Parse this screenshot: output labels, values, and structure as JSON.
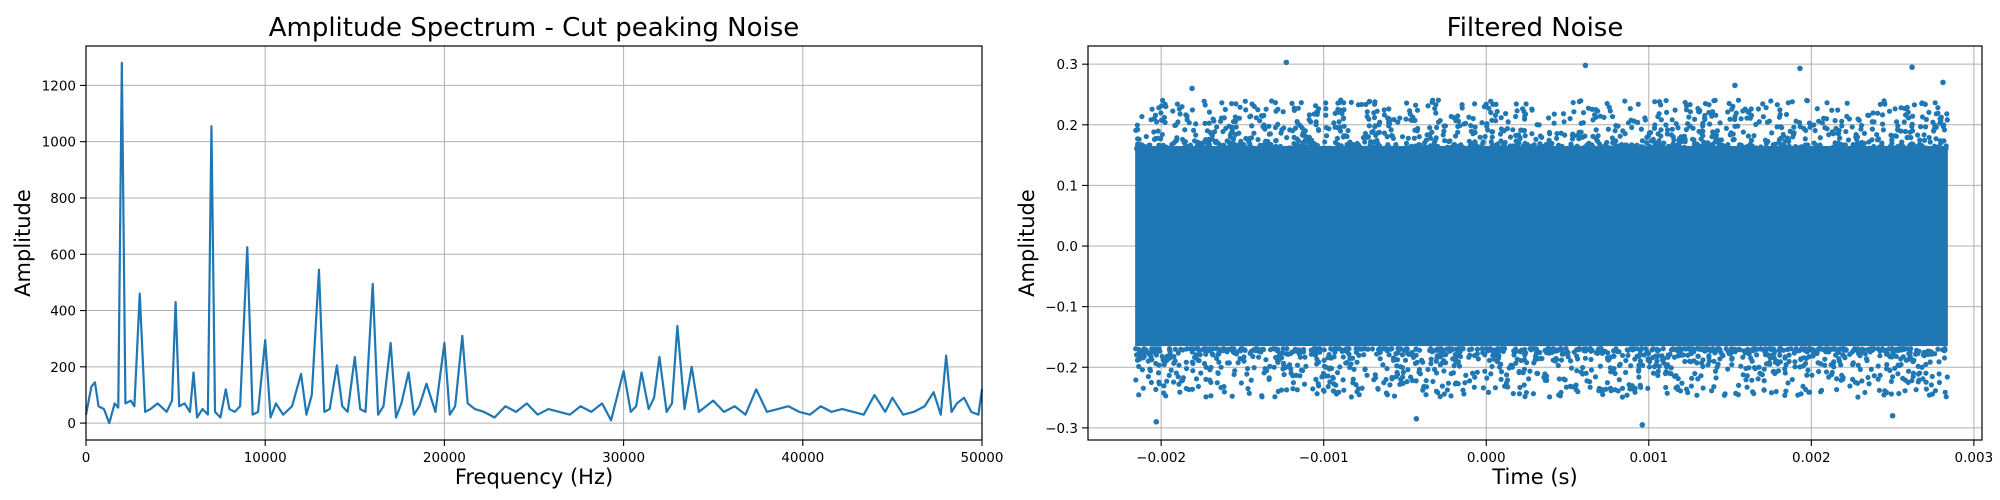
{
  "colors": {
    "series": "#1f77b4",
    "grid": "#b0b0b0",
    "axes": "#000000"
  },
  "chart_data": [
    {
      "type": "line",
      "title": "Amplitude Spectrum - Cut peaking Noise",
      "xlabel": "Frequency (Hz)",
      "ylabel": "Amplitude",
      "xlim": [
        0,
        50000
      ],
      "ylim": [
        -60,
        1340
      ],
      "xticks": [
        0,
        10000,
        20000,
        30000,
        40000,
        50000
      ],
      "xtick_labels": [
        "0",
        "10000",
        "20000",
        "30000",
        "40000",
        "50000"
      ],
      "yticks": [
        0,
        200,
        400,
        600,
        800,
        1000,
        1200
      ],
      "ytick_labels": [
        "0",
        "200",
        "400",
        "600",
        "800",
        "1000",
        "1200"
      ],
      "grid": true,
      "series": [
        {
          "x": [
            0,
            300,
            500,
            700,
            1000,
            1300,
            1600,
            1800,
            2000,
            2200,
            2500,
            2700,
            3000,
            3300,
            3600,
            4000,
            4500,
            4800,
            5000,
            5200,
            5500,
            5800,
            6000,
            6200,
            6500,
            6800,
            7000,
            7200,
            7500,
            7800,
            8000,
            8300,
            8600,
            9000,
            9300,
            9600,
            10000,
            10300,
            10600,
            11000,
            11500,
            12000,
            12300,
            12600,
            13000,
            13300,
            13600,
            14000,
            14300,
            14600,
            15000,
            15300,
            15600,
            16000,
            16300,
            16600,
            17000,
            17300,
            17600,
            18000,
            18300,
            18600,
            19000,
            19500,
            20000,
            20300,
            20600,
            21000,
            21300,
            21700,
            22200,
            22800,
            23400,
            24000,
            24600,
            25200,
            25800,
            26400,
            27000,
            27600,
            28200,
            28800,
            29300,
            30000,
            30400,
            30700,
            31000,
            31400,
            31700,
            32000,
            32400,
            32700,
            33000,
            33400,
            33800,
            34200,
            34600,
            35000,
            35600,
            36200,
            36800,
            37400,
            38000,
            38600,
            39200,
            39800,
            40400,
            41000,
            41600,
            42200,
            42800,
            43400,
            44000,
            44600,
            45000,
            45600,
            46200,
            46800,
            47300,
            47700,
            48000,
            48300,
            48600,
            49000,
            49400,
            49800,
            50000
          ],
          "y": [
            30,
            130,
            145,
            60,
            50,
            0,
            70,
            55,
            1280,
            70,
            80,
            60,
            460,
            40,
            50,
            70,
            40,
            80,
            430,
            60,
            70,
            40,
            180,
            20,
            50,
            30,
            1055,
            40,
            20,
            120,
            50,
            40,
            60,
            625,
            30,
            40,
            295,
            20,
            70,
            30,
            60,
            175,
            30,
            100,
            545,
            40,
            50,
            205,
            60,
            40,
            235,
            50,
            40,
            495,
            30,
            60,
            285,
            20,
            70,
            180,
            30,
            60,
            140,
            40,
            285,
            30,
            60,
            310,
            70,
            50,
            40,
            20,
            60,
            40,
            70,
            30,
            50,
            40,
            30,
            60,
            40,
            70,
            10,
            185,
            40,
            60,
            180,
            50,
            90,
            235,
            40,
            70,
            345,
            50,
            200,
            40,
            60,
            80,
            40,
            60,
            30,
            120,
            40,
            50,
            60,
            40,
            30,
            60,
            40,
            50,
            40,
            30,
            100,
            40,
            90,
            30,
            40,
            60,
            110,
            30,
            240,
            40,
            70,
            90,
            40,
            30,
            120
          ]
        }
      ]
    },
    {
      "type": "scatter",
      "title": "Filtered Noise",
      "xlabel": "Time (s)",
      "ylabel": "Amplitude",
      "xlim": [
        -0.00245,
        0.00305
      ],
      "ylim": [
        -0.32,
        0.33
      ],
      "xticks": [
        -0.002,
        -0.001,
        0.0,
        0.001,
        0.002,
        0.003
      ],
      "xtick_labels": [
        "−0.002",
        "−0.001",
        "0.000",
        "0.001",
        "0.002",
        "0.003"
      ],
      "yticks": [
        -0.3,
        -0.2,
        -0.1,
        0.0,
        0.1,
        0.2,
        0.3
      ],
      "ytick_labels": [
        "−0.3",
        "−0.2",
        "−0.1",
        "0.0",
        "0.1",
        "0.2",
        "0.3"
      ],
      "grid": true,
      "series": [
        {
          "x_range": [
            -0.00216,
            0.00284
          ],
          "dense_band": [
            -0.165,
            0.165
          ],
          "spread_extent": [
            -0.29,
            0.305
          ],
          "outliers": [
            {
              "x": -0.00203,
              "y": -0.29
            },
            {
              "x": -0.00123,
              "y": 0.303
            },
            {
              "x": 0.00061,
              "y": 0.298
            },
            {
              "x": 0.00096,
              "y": -0.295
            },
            {
              "x": 0.00193,
              "y": 0.293
            },
            {
              "x": 0.00262,
              "y": 0.295
            },
            {
              "x": -0.00043,
              "y": -0.285
            },
            {
              "x": 0.0025,
              "y": -0.28
            },
            {
              "x": 0.00281,
              "y": 0.27
            },
            {
              "x": -0.00181,
              "y": 0.26
            },
            {
              "x": 0.00153,
              "y": 0.265
            }
          ]
        }
      ]
    }
  ]
}
